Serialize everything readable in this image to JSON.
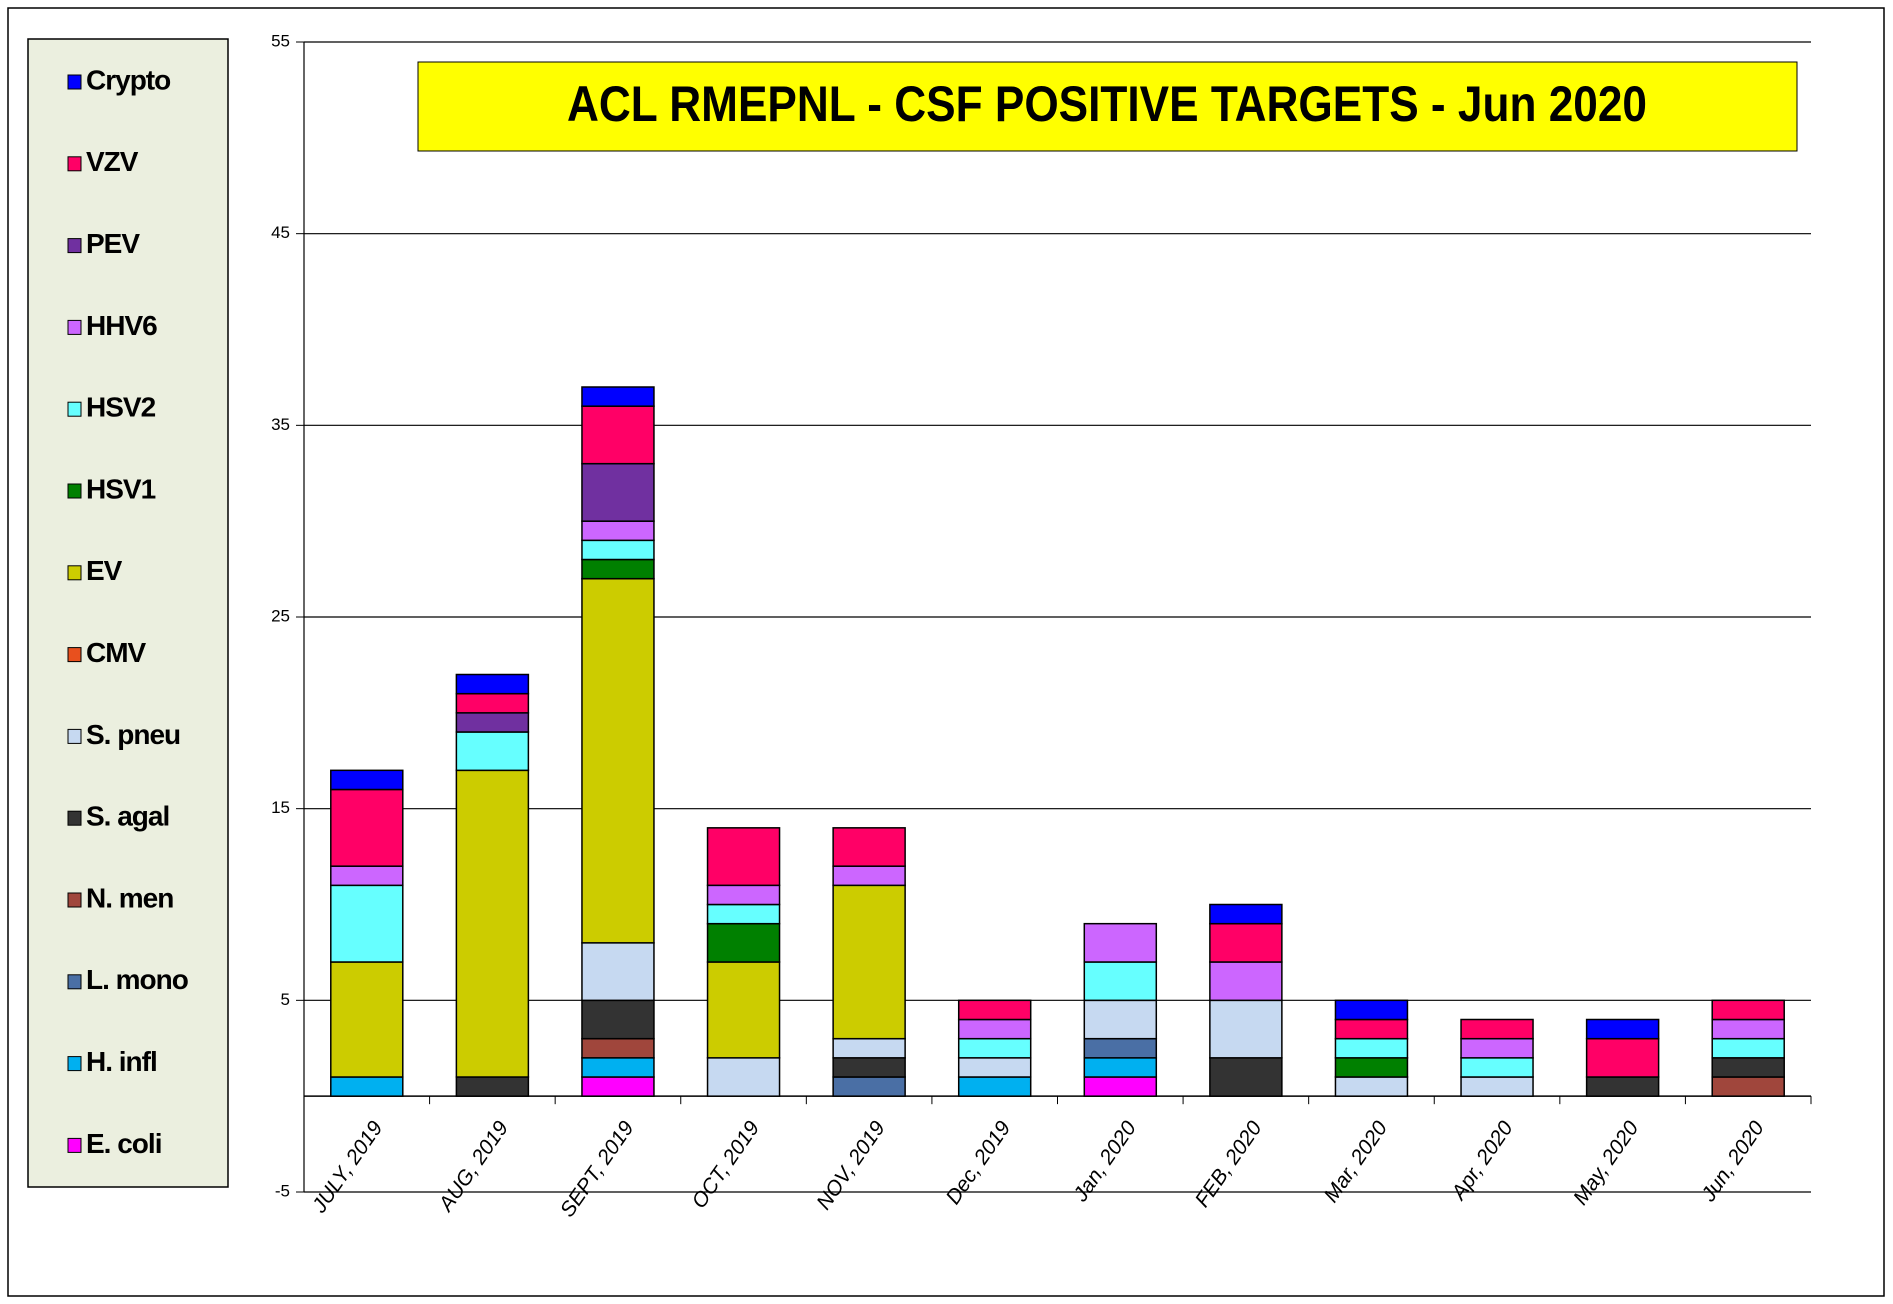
{
  "chart_data": {
    "type": "stacked_bar",
    "title": "ACL RMEPNL - CSF POSITIVE TARGETS - Jun 2020",
    "categories": [
      "JULY, 2019",
      "AUG, 2019",
      "SEPT, 2019",
      "OCT, 2019",
      "NOV, 2019",
      "Dec, 2019",
      "Jan, 2020",
      "FEB, 2020",
      "Mar, 2020",
      "Apr, 2020",
      "May, 2020",
      "Jun, 2020"
    ],
    "ylim": [
      -5,
      55
    ],
    "yticks": [
      -5,
      5,
      15,
      25,
      35,
      45,
      55
    ],
    "grid": true,
    "legend": "left",
    "series": [
      {
        "name": "E. coli",
        "color": "#ff00ff",
        "values": [
          0,
          0,
          1,
          0,
          0,
          0,
          1,
          0,
          0,
          0,
          0,
          0
        ]
      },
      {
        "name": "H. infl",
        "color": "#00b0f0",
        "values": [
          1,
          0,
          1,
          0,
          0,
          1,
          1,
          0,
          0,
          0,
          0,
          0
        ]
      },
      {
        "name": "L. mono",
        "color": "#4a6fa5",
        "values": [
          0,
          0,
          0,
          0,
          1,
          0,
          1,
          0,
          0,
          0,
          0,
          0
        ]
      },
      {
        "name": "N. men",
        "color": "#a0463c",
        "values": [
          0,
          0,
          1,
          0,
          0,
          0,
          0,
          0,
          0,
          0,
          0,
          1
        ]
      },
      {
        "name": "S. agal",
        "color": "#333333",
        "values": [
          0,
          1,
          2,
          0,
          1,
          0,
          0,
          2,
          0,
          0,
          1,
          1
        ]
      },
      {
        "name": "S. pneu",
        "color": "#c6d9f1",
        "values": [
          0,
          0,
          3,
          2,
          1,
          1,
          2,
          3,
          1,
          1,
          0,
          0
        ]
      },
      {
        "name": "CMV",
        "color": "#e8501e",
        "values": [
          0,
          0,
          0,
          0,
          0,
          0,
          0,
          0,
          0,
          0,
          0,
          0
        ]
      },
      {
        "name": "EV",
        "color": "#cccc00",
        "values": [
          6,
          16,
          19,
          5,
          8,
          0,
          0,
          0,
          0,
          0,
          0,
          0
        ]
      },
      {
        "name": "HSV1",
        "color": "#008000",
        "values": [
          0,
          0,
          1,
          2,
          0,
          0,
          0,
          0,
          1,
          0,
          0,
          0
        ]
      },
      {
        "name": "HSV2",
        "color": "#66ffff",
        "values": [
          4,
          2,
          1,
          1,
          0,
          1,
          2,
          0,
          1,
          1,
          0,
          1
        ]
      },
      {
        "name": "HHV6",
        "color": "#cc66ff",
        "values": [
          1,
          0,
          1,
          1,
          1,
          1,
          2,
          2,
          0,
          1,
          0,
          1
        ]
      },
      {
        "name": "PEV",
        "color": "#7030a0",
        "values": [
          0,
          1,
          3,
          0,
          0,
          0,
          0,
          0,
          0,
          0,
          0,
          0
        ]
      },
      {
        "name": "VZV",
        "color": "#ff0066",
        "values": [
          4,
          1,
          3,
          3,
          2,
          1,
          0,
          2,
          1,
          1,
          2,
          1
        ]
      },
      {
        "name": "Crypto",
        "color": "#0000ff",
        "values": [
          1,
          1,
          1,
          0,
          0,
          0,
          0,
          1,
          1,
          0,
          1,
          0
        ]
      }
    ]
  }
}
